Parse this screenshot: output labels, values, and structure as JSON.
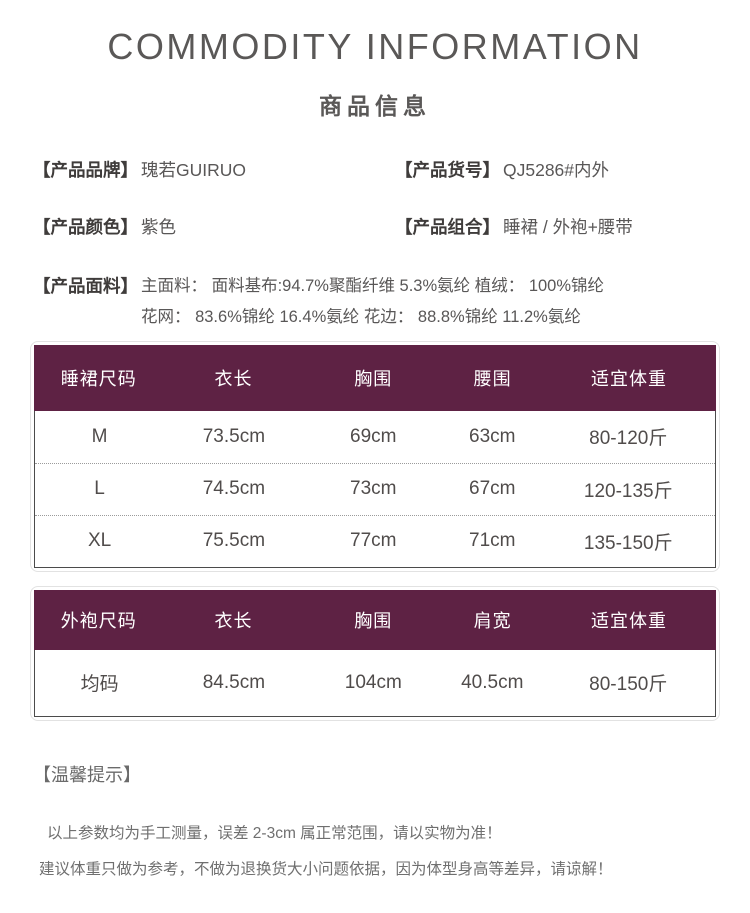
{
  "page": {
    "title": "COMMODITY INFORMATION",
    "subtitle": "商品信息"
  },
  "info": {
    "brand": {
      "label": "【产品品牌】",
      "value": "瑰若GUIRUO"
    },
    "item_no": {
      "label": "【产品货号】",
      "value": "QJ5286#内外"
    },
    "color": {
      "label": "【产品颜色】",
      "value": "紫色"
    },
    "combo": {
      "label": "【产品组合】",
      "value": "睡裙 / 外袍+腰带"
    },
    "fabric": {
      "label": "【产品面料】",
      "line1": "主面料： 面料基布:94.7%聚酯纤维 5.3%氨纶 植绒： 100%锦纶",
      "line2": "花网： 83.6%锦纶 16.4%氨纶  花边： 88.8%锦纶 11.2%氨纶"
    }
  },
  "tables": [
    {
      "name": "睡裙尺码表",
      "headers": [
        "睡裙尺码",
        "衣长",
        "胸围",
        "腰围",
        "适宜体重"
      ],
      "rows": [
        [
          "M",
          "73.5cm",
          "69cm",
          "63cm",
          "80-120斤"
        ],
        [
          "L",
          "74.5cm",
          "73cm",
          "67cm",
          "120-135斤"
        ],
        [
          "XL",
          "75.5cm",
          "77cm",
          "71cm",
          "135-150斤"
        ]
      ]
    },
    {
      "name": "外袍尺码表",
      "headers": [
        "外袍尺码",
        "衣长",
        "胸围",
        "肩宽",
        "适宜体重"
      ],
      "rows": [
        [
          "均码",
          "84.5cm",
          "104cm",
          "40.5cm",
          "80-150斤"
        ]
      ]
    }
  ],
  "tips": {
    "label": "【温馨提示】",
    "lines": [
      "以上参数均为手工测量，误差 2-3cm 属正常范围，请以实物为准！",
      "建议体重只做为参考，不做为退换货大小问题依据，因为体型身高等差异，请谅解！"
    ]
  },
  "colors": {
    "accent": "#5e2244",
    "text": "#595757",
    "label": "#3f3c3b"
  }
}
